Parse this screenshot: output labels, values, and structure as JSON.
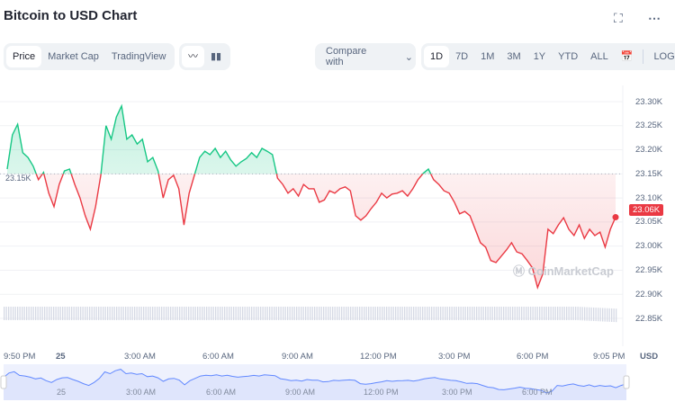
{
  "title": "Bitcoin to USD Chart",
  "top_icons": [
    "fullscreen-icon",
    "more-icon"
  ],
  "view_tabs": [
    {
      "label": "Price",
      "active": true
    },
    {
      "label": "Market Cap",
      "active": false
    },
    {
      "label": "TradingView",
      "active": false
    }
  ],
  "chart_type_icons": [
    "line-chart-icon",
    "candlestick-icon"
  ],
  "compare": {
    "label": "Compare with"
  },
  "ranges": [
    {
      "label": "1D",
      "active": true
    },
    {
      "label": "7D"
    },
    {
      "label": "1M"
    },
    {
      "label": "3M"
    },
    {
      "label": "1Y"
    },
    {
      "label": "YTD"
    },
    {
      "label": "ALL"
    }
  ],
  "log_label": "LOG",
  "currency": "USD",
  "watermark": "CoinMarketCap",
  "colors": {
    "up": "#16c784",
    "down": "#ea3943",
    "navigator": "#6188ff"
  },
  "chart_data": {
    "type": "line",
    "ylim": [
      22820,
      23320
    ],
    "yticks": [
      "23.30K",
      "23.25K",
      "23.20K",
      "23.15K",
      "23.10K",
      "23.05K",
      "23.00K",
      "22.95K",
      "22.90K",
      "22.85K"
    ],
    "ytick_values": [
      23300,
      23250,
      23200,
      23150,
      23100,
      23050,
      23000,
      22950,
      22900,
      22850
    ],
    "xticks": [
      "9:50 PM",
      "25",
      "3:00 AM",
      "6:00 AM",
      "9:00 AM",
      "12:00 PM",
      "3:00 PM",
      "6:00 PM",
      "9:05 PM"
    ],
    "nav_xticks": [
      "25",
      "3:00 AM",
      "6:00 AM",
      "9:00 AM",
      "12:00 PM",
      "3:00 PM",
      "6:00 PM"
    ],
    "baseline": 23150,
    "baseline_label": "23.15K",
    "current_price_label": "23.06K",
    "values": [
      23160,
      23231,
      23253,
      23194,
      23184,
      23166,
      23138,
      23153,
      23110,
      23082,
      23128,
      23156,
      23160,
      23128,
      23100,
      23063,
      23035,
      23082,
      23147,
      23250,
      23222,
      23268,
      23291,
      23222,
      23231,
      23212,
      23222,
      23175,
      23184,
      23156,
      23100,
      23138,
      23147,
      23119,
      23044,
      23110,
      23147,
      23184,
      23197,
      23190,
      23203,
      23184,
      23197,
      23179,
      23166,
      23175,
      23182,
      23194,
      23184,
      23203,
      23197,
      23190,
      23141,
      23128,
      23110,
      23119,
      23104,
      23128,
      23119,
      23119,
      23091,
      23096,
      23115,
      23110,
      23119,
      23123,
      23115,
      23063,
      23054,
      23063,
      23078,
      23091,
      23110,
      23100,
      23108,
      23110,
      23115,
      23104,
      23119,
      23138,
      23151,
      23160,
      23138,
      23128,
      23115,
      23110,
      23091,
      23067,
      23072,
      23063,
      23035,
      23007,
      22998,
      22970,
      22966,
      22979,
      22992,
      23007,
      22988,
      22984,
      22970,
      22955,
      22914,
      22942,
      23035,
      23026,
      23044,
      23059,
      23035,
      23022,
      23044,
      23016,
      23035,
      23022,
      23029,
      22998,
      23035,
      23060
    ]
  }
}
